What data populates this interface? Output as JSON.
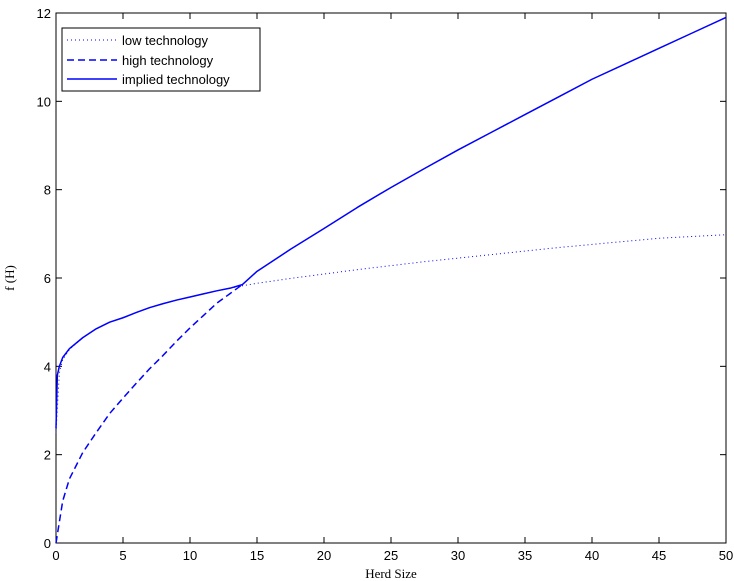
{
  "chart_data": {
    "type": "line",
    "title": "",
    "xlabel": "Herd Size",
    "ylabel": "f (H)",
    "xlim": [
      0,
      50
    ],
    "ylim": [
      0,
      12
    ],
    "xticks": [
      0,
      5,
      10,
      15,
      20,
      25,
      30,
      35,
      40,
      45,
      50
    ],
    "yticks": [
      0,
      2,
      4,
      6,
      8,
      10,
      12
    ],
    "grid": false,
    "legend_position": "top-left",
    "series": [
      {
        "name": "low technology",
        "style": "dotted",
        "color": "#0000ff",
        "x": [
          0,
          0.25,
          0.5,
          1,
          2,
          3,
          4,
          5,
          6,
          7,
          8,
          9,
          10,
          11,
          12,
          13,
          14,
          15,
          17.5,
          20,
          22.5,
          25,
          27.5,
          30,
          32.5,
          35,
          37.5,
          40,
          42.5,
          45,
          47.5,
          50
        ],
        "y": [
          2.5,
          3.85,
          4.15,
          4.38,
          4.65,
          4.85,
          5.0,
          5.1,
          5.22,
          5.33,
          5.42,
          5.5,
          5.57,
          5.64,
          5.71,
          5.77,
          5.83,
          5.88,
          5.99,
          6.09,
          6.19,
          6.28,
          6.37,
          6.45,
          6.53,
          6.61,
          6.69,
          6.76,
          6.83,
          6.9,
          6.94,
          6.98
        ]
      },
      {
        "name": "high technology",
        "style": "dashed",
        "color": "#0000ff",
        "x": [
          0,
          0.5,
          1,
          2,
          3,
          4,
          5,
          6,
          7,
          8,
          9,
          10,
          11,
          12,
          13,
          13.9
        ],
        "y": [
          0,
          0.95,
          1.45,
          2.05,
          2.5,
          2.93,
          3.28,
          3.62,
          3.95,
          4.25,
          4.57,
          4.87,
          5.15,
          5.43,
          5.65,
          5.85
        ]
      },
      {
        "name": "implied technology",
        "style": "solid",
        "color": "#0000ff",
        "x": [
          0,
          0.1,
          0.25,
          0.5,
          1,
          2,
          3,
          4,
          5,
          6,
          7,
          8,
          9,
          10,
          11,
          12,
          13,
          13.9,
          15,
          17.5,
          20,
          22.5,
          25,
          27.5,
          30,
          32.5,
          35,
          37.5,
          40,
          42.5,
          45,
          47.5,
          50
        ],
        "y": [
          2.6,
          3.8,
          4.0,
          4.2,
          4.4,
          4.65,
          4.85,
          5.0,
          5.1,
          5.22,
          5.33,
          5.42,
          5.5,
          5.57,
          5.64,
          5.71,
          5.77,
          5.85,
          6.15,
          6.65,
          7.12,
          7.6,
          8.05,
          8.48,
          8.9,
          9.3,
          9.7,
          10.1,
          10.5,
          10.85,
          11.2,
          11.55,
          11.9
        ]
      }
    ]
  }
}
